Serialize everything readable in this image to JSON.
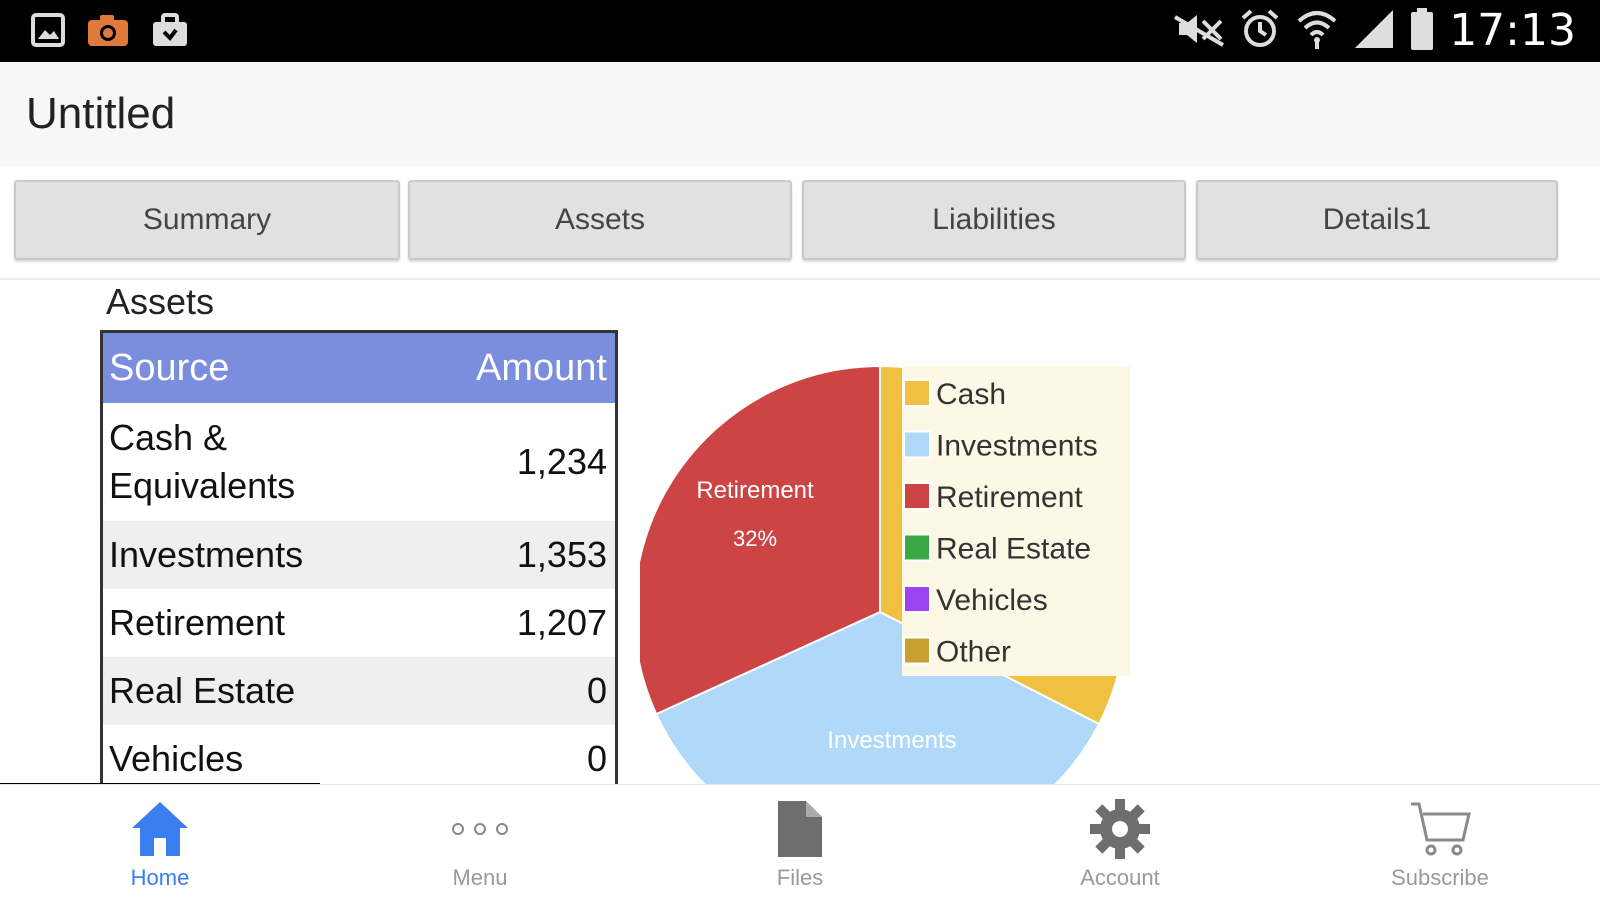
{
  "status_bar": {
    "time": "17:13",
    "icons": [
      "gallery-icon",
      "camera-icon",
      "briefcase-icon",
      "mute-icon",
      "alarm-icon",
      "wifi-icon",
      "signal-icon",
      "battery-icon"
    ]
  },
  "app": {
    "title": "Untitled"
  },
  "tabs": [
    {
      "label": "Summary"
    },
    {
      "label": "Assets"
    },
    {
      "label": "Liabilities"
    },
    {
      "label": "Details1"
    }
  ],
  "assets_table": {
    "section_title": "Assets",
    "columns": [
      "Source",
      "Amount"
    ],
    "rows": [
      {
        "source": "Cash & Equivalents",
        "amount": "1,234"
      },
      {
        "source": "Investments",
        "amount": "1,353"
      },
      {
        "source": "Retirement",
        "amount": "1,207"
      },
      {
        "source": "Real Estate",
        "amount": "0"
      },
      {
        "source": "Vehicles",
        "amount": "0"
      }
    ]
  },
  "chart_data": {
    "type": "pie",
    "slices": [
      {
        "label": "Cash",
        "value": 1234,
        "color": "#f0c040"
      },
      {
        "label": "Investments",
        "value": 1353,
        "color": "#b0d8f8"
      },
      {
        "label": "Retirement",
        "value": 1207,
        "color": "#cc4444"
      },
      {
        "label": "Real Estate",
        "value": 0,
        "color": "#3aa845"
      },
      {
        "label": "Vehicles",
        "value": 0,
        "color": "#9b44f0"
      },
      {
        "label": "Other",
        "value": 0,
        "color": "#c8a030"
      }
    ],
    "slice_labels": [
      {
        "label": "Retirement",
        "percent": "32%"
      },
      {
        "label": "Investments"
      }
    ],
    "legend_position": "right"
  },
  "bottom_nav": [
    {
      "label": "Home",
      "icon": "home-icon",
      "active": true
    },
    {
      "label": "Menu",
      "icon": "more-dots-icon",
      "active": false
    },
    {
      "label": "Files",
      "icon": "file-icon",
      "active": false
    },
    {
      "label": "Account",
      "icon": "gear-icon",
      "active": false
    },
    {
      "label": "Subscribe",
      "icon": "cart-icon",
      "active": false
    }
  ],
  "colors": {
    "accent": "#3a7ef0",
    "table_header": "#7b8ede"
  }
}
